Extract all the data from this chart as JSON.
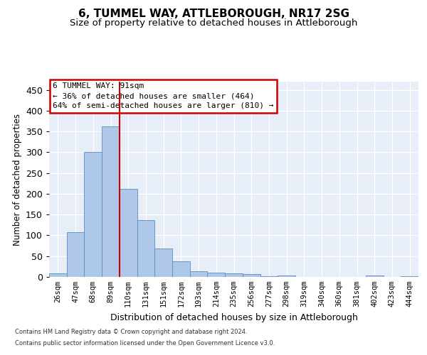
{
  "title": "6, TUMMEL WAY, ATTLEBOROUGH, NR17 2SG",
  "subtitle": "Size of property relative to detached houses in Attleborough",
  "xlabel": "Distribution of detached houses by size in Attleborough",
  "ylabel": "Number of detached properties",
  "footer_line1": "Contains HM Land Registry data © Crown copyright and database right 2024.",
  "footer_line2": "Contains public sector information licensed under the Open Government Licence v3.0.",
  "categories": [
    "26sqm",
    "47sqm",
    "68sqm",
    "89sqm",
    "110sqm",
    "131sqm",
    "151sqm",
    "172sqm",
    "193sqm",
    "214sqm",
    "235sqm",
    "256sqm",
    "277sqm",
    "298sqm",
    "319sqm",
    "340sqm",
    "360sqm",
    "381sqm",
    "402sqm",
    "423sqm",
    "444sqm"
  ],
  "values": [
    8,
    108,
    301,
    362,
    212,
    136,
    68,
    38,
    13,
    10,
    9,
    6,
    2,
    3,
    0,
    0,
    0,
    0,
    3,
    0,
    2
  ],
  "bar_color": "#aec6e8",
  "bar_edge_color": "#5a8fc0",
  "highlight_bar_index": 3,
  "highlight_line_color": "#cc0000",
  "annotation_text_line1": "6 TUMMEL WAY: 91sqm",
  "annotation_text_line2": "← 36% of detached houses are smaller (464)",
  "annotation_text_line3": "64% of semi-detached houses are larger (810) →",
  "annotation_box_color": "#ffffff",
  "annotation_box_edge_color": "#cc0000",
  "ylim": [
    0,
    470
  ],
  "yticks": [
    0,
    50,
    100,
    150,
    200,
    250,
    300,
    350,
    400,
    450
  ],
  "background_color": "#e8eef7",
  "fig_background": "#ffffff",
  "title_fontsize": 11,
  "subtitle_fontsize": 9.5
}
